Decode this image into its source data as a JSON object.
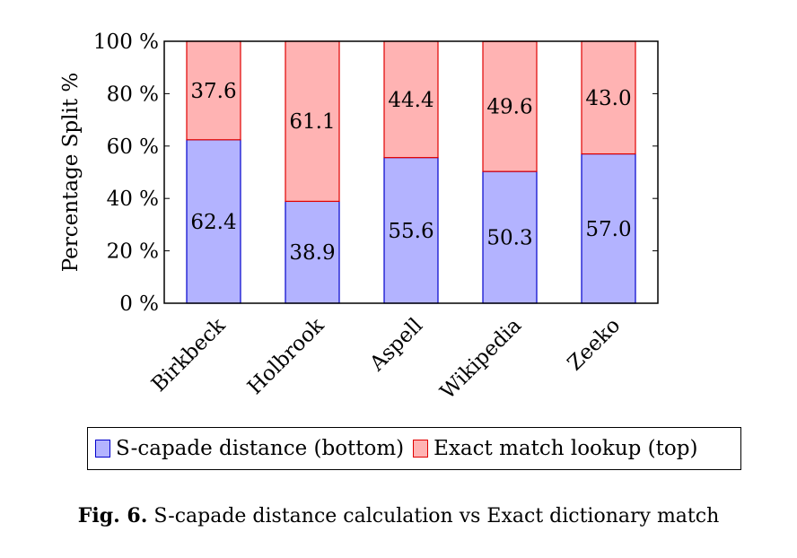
{
  "chart_data": {
    "type": "bar",
    "stacked": true,
    "categories": [
      "Birkbeck",
      "Holbrook",
      "Aspell",
      "Wikipedia",
      "Zeeko"
    ],
    "series": [
      {
        "name": "S-capade distance (bottom)",
        "values": [
          62.4,
          38.9,
          55.6,
          50.3,
          57.0
        ],
        "labels": [
          "62.4",
          "38.9",
          "55.6",
          "50.3",
          "57.0"
        ],
        "fill": "#b3b3ff",
        "stroke": "#0000cc"
      },
      {
        "name": "Exact match lookup (top)",
        "values": [
          37.6,
          61.1,
          44.4,
          49.6,
          43.0
        ],
        "labels": [
          "37.6",
          "61.1",
          "44.4",
          "49.6",
          "43.0"
        ],
        "fill": "#ffb3b3",
        "stroke": "#e00000"
      }
    ],
    "ylabel": "Percentage Split %",
    "ylim": [
      0,
      100
    ],
    "yticks": [
      0,
      20,
      40,
      60,
      80,
      100
    ],
    "ytick_labels": [
      "0 %",
      "20 %",
      "40 %",
      "60 %",
      "80 %",
      "100 %"
    ],
    "legend_position": "bottom"
  },
  "caption": {
    "label": "Fig. 6.",
    "text": "S-capade distance calculation vs Exact dictionary match"
  }
}
